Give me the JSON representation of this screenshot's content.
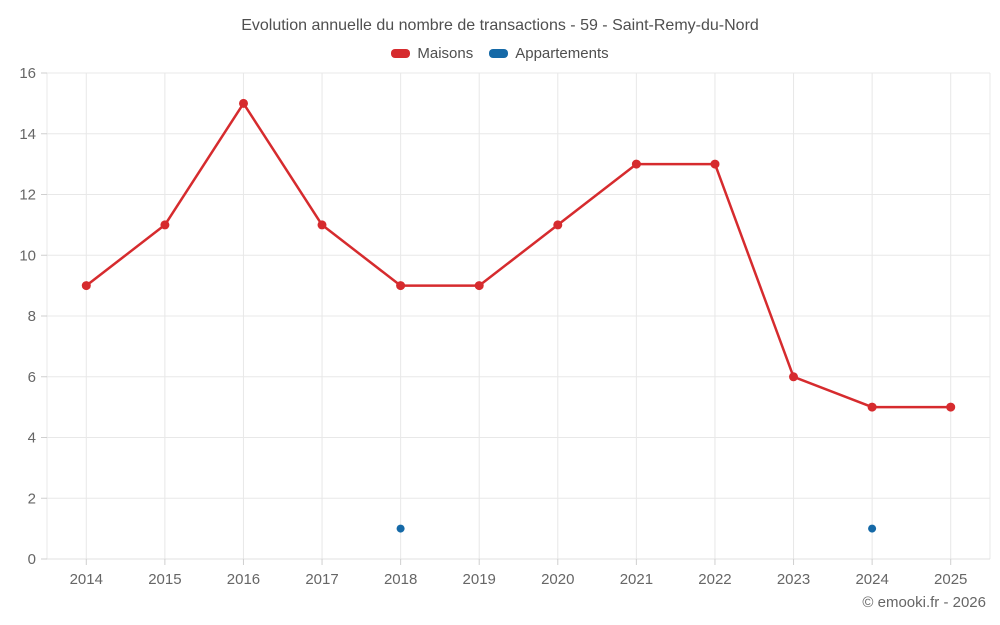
{
  "title": "Evolution annuelle du nombre de transactions - 59 - Saint-Remy-du-Nord",
  "footer": {
    "copyright": "© emooki.fr - 2026"
  },
  "chart_data": {
    "type": "line",
    "title": "Evolution annuelle du nombre de transactions - 59 - Saint-Remy-du-Nord",
    "categories": [
      "2014",
      "2015",
      "2016",
      "2017",
      "2018",
      "2019",
      "2020",
      "2021",
      "2022",
      "2023",
      "2024",
      "2025"
    ],
    "series": [
      {
        "name": "Maisons",
        "color": "#d62b2e",
        "marker_radius": 4.5,
        "line_width": 2.5,
        "values": [
          9,
          11,
          15,
          11,
          9,
          9,
          11,
          13,
          13,
          6,
          5,
          5
        ]
      },
      {
        "name": "Appartements",
        "color": "#1569a7",
        "marker_radius": 4,
        "line_width": 2.5,
        "values": [
          null,
          null,
          null,
          null,
          1,
          null,
          null,
          null,
          null,
          null,
          1,
          null
        ]
      }
    ],
    "xlabel": "",
    "ylabel": "",
    "ylim": [
      0,
      16
    ],
    "ytick_step": 2,
    "grid": true,
    "legend_position": "top",
    "colors": {
      "gridline": "#e8e8e8",
      "axis_line": "#e0e0e0",
      "tick": "#cfcfcf",
      "axis_label": "#666666"
    }
  }
}
